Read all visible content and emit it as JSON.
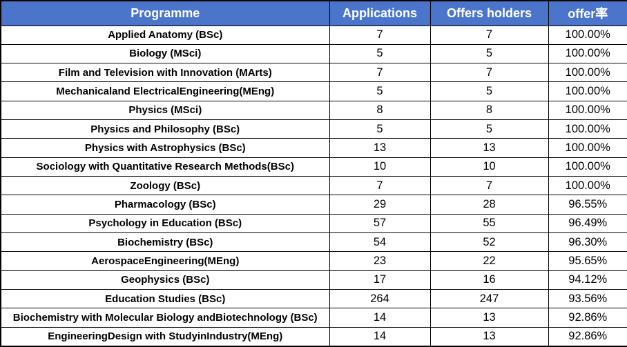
{
  "table": {
    "columns": [
      {
        "key": "programme",
        "label": "Programme"
      },
      {
        "key": "applications",
        "label": "Applications"
      },
      {
        "key": "offers",
        "label": "Offers holders"
      },
      {
        "key": "rate",
        "label": "offer率"
      }
    ],
    "rows": [
      {
        "programme": "Applied Anatomy (BSc)",
        "applications": "7",
        "offers": "7",
        "rate": "100.00%"
      },
      {
        "programme": "Biology (MSci)",
        "applications": "5",
        "offers": "5",
        "rate": "100.00%"
      },
      {
        "programme": "Film and Television with Innovation (MArts)",
        "applications": "7",
        "offers": "7",
        "rate": "100.00%"
      },
      {
        "programme": "Mechanicaland ElectricalEngineering(MEng)",
        "applications": "5",
        "offers": "5",
        "rate": "100.00%"
      },
      {
        "programme": "Physics (MSci)",
        "applications": "8",
        "offers": "8",
        "rate": "100.00%"
      },
      {
        "programme": "Physics and Philosophy (BSc)",
        "applications": "5",
        "offers": "5",
        "rate": "100.00%"
      },
      {
        "programme": "Physics with Astrophysics (BSc)",
        "applications": "13",
        "offers": "13",
        "rate": "100.00%"
      },
      {
        "programme": "Sociology with Quantitative Research Methods(BSc)",
        "applications": "10",
        "offers": "10",
        "rate": "100.00%"
      },
      {
        "programme": "Zoology (BSc)",
        "applications": "7",
        "offers": "7",
        "rate": "100.00%"
      },
      {
        "programme": "Pharmacology (BSc)",
        "applications": "29",
        "offers": "28",
        "rate": "96.55%"
      },
      {
        "programme": "Psychology in Education (BSc)",
        "applications": "57",
        "offers": "55",
        "rate": "96.49%"
      },
      {
        "programme": "Biochemistry (BSc)",
        "applications": "54",
        "offers": "52",
        "rate": "96.30%"
      },
      {
        "programme": "AerospaceEngineering(MEng)",
        "applications": "23",
        "offers": "22",
        "rate": "95.65%"
      },
      {
        "programme": "Geophysics (BSc)",
        "applications": "17",
        "offers": "16",
        "rate": "94.12%"
      },
      {
        "programme": "Education Studies (BSc)",
        "applications": "264",
        "offers": "247",
        "rate": "93.56%"
      },
      {
        "programme": "Biochemistry with Molecular Biology andBiotechnology (BSc)",
        "applications": "14",
        "offers": "13",
        "rate": "92.86%"
      },
      {
        "programme": "EngineeringDesign with StudyinIndustry(MEng)",
        "applications": "14",
        "offers": "13",
        "rate": "92.86%"
      }
    ]
  },
  "colors": {
    "header_bg": "#4B75CB",
    "header_text": "#FFFFFF",
    "border": "#000000",
    "row_bg": "#FFFFFF",
    "body_text": "#000000"
  }
}
